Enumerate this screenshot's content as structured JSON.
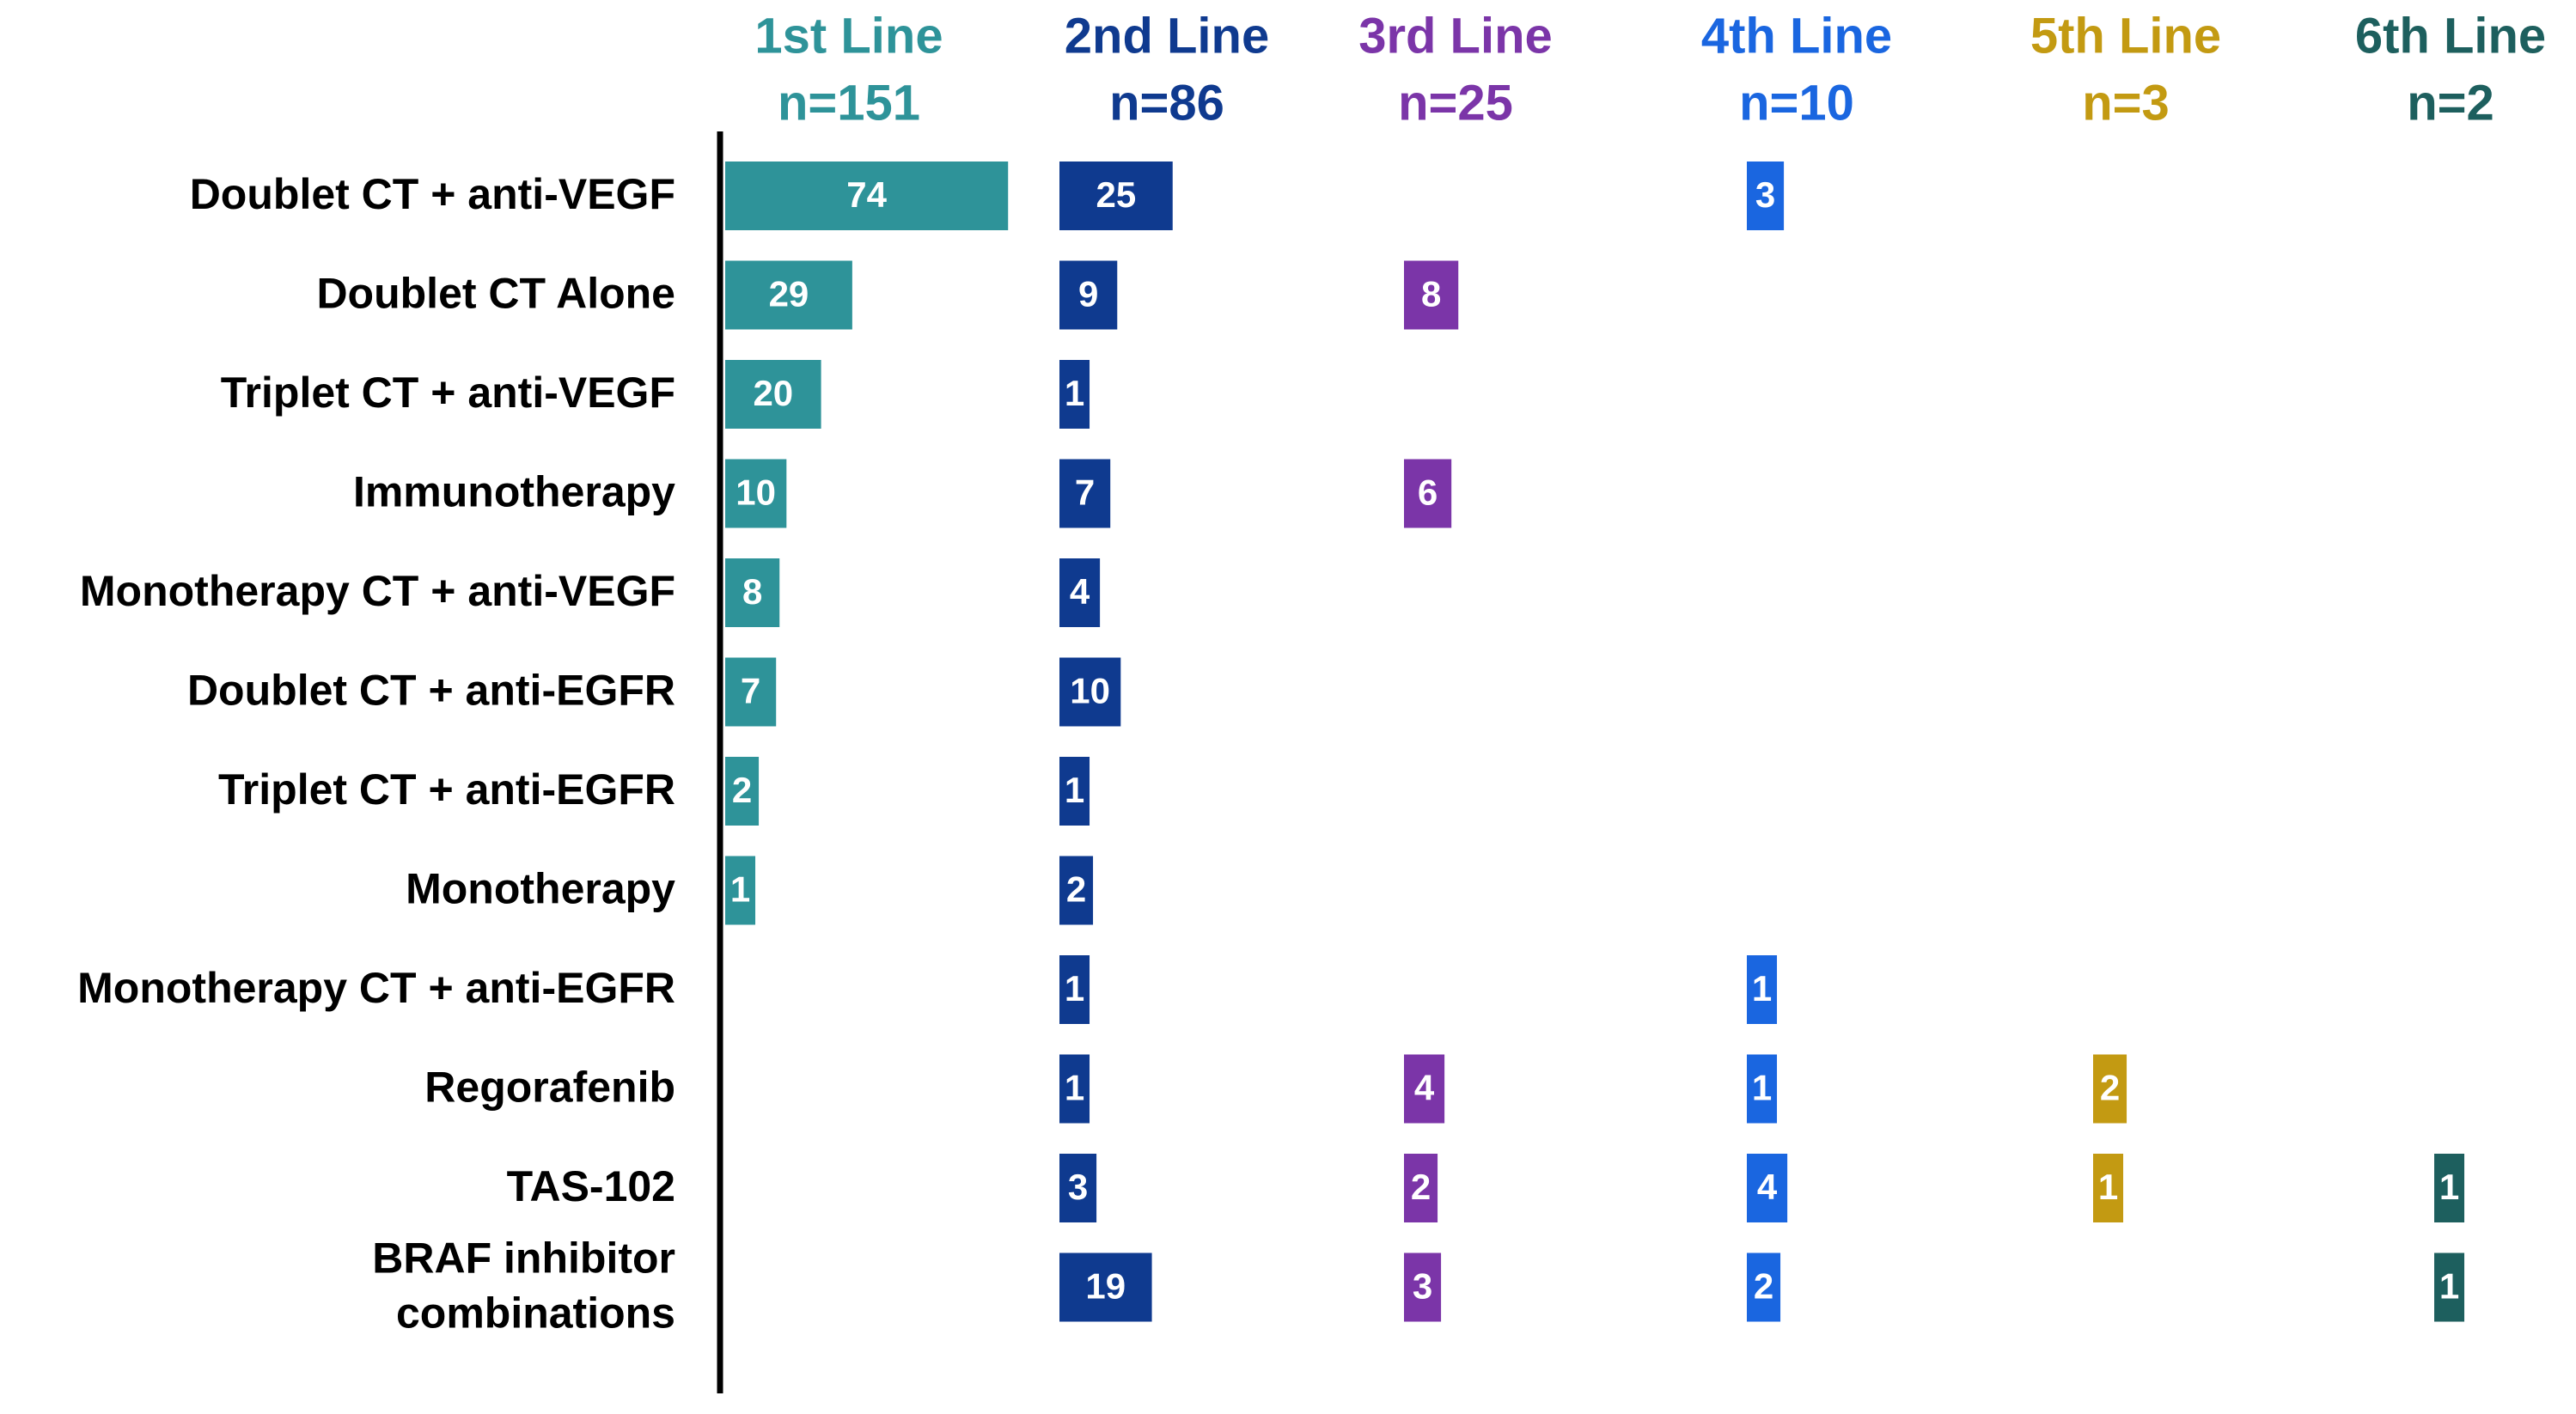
{
  "chart_data": {
    "type": "bar",
    "orientation": "horizontal",
    "categories": [
      "Doublet CT + anti-VEGF",
      "Doublet CT Alone",
      "Triplet CT + anti-VEGF",
      "Immunotherapy",
      "Monotherapy CT + anti-VEGF",
      "Doublet CT + anti-EGFR",
      "Triplet CT + anti-EGFR",
      "Monotherapy",
      "Monotherapy CT + anti-EGFR",
      "Regorafenib",
      "TAS-102",
      "BRAF inhibitor\ncombinations"
    ],
    "series": [
      {
        "name": "1st Line",
        "subtitle": "n=151",
        "color": "#2e9399",
        "values": [
          74,
          29,
          20,
          10,
          8,
          7,
          2,
          1,
          null,
          null,
          null,
          null
        ]
      },
      {
        "name": "2nd Line",
        "subtitle": "n=86",
        "color": "#0f3a8f",
        "values": [
          25,
          9,
          1,
          7,
          4,
          10,
          1,
          2,
          1,
          1,
          3,
          19
        ]
      },
      {
        "name": "3rd Line",
        "subtitle": "n=25",
        "color": "#7b35a8",
        "values": [
          null,
          8,
          null,
          6,
          null,
          null,
          null,
          null,
          null,
          4,
          2,
          3
        ]
      },
      {
        "name": "4th Line",
        "subtitle": "n=10",
        "color": "#1a66e0",
        "values": [
          3,
          null,
          null,
          null,
          null,
          null,
          null,
          null,
          1,
          1,
          4,
          2
        ]
      },
      {
        "name": "5th Line",
        "subtitle": "n=3",
        "color": "#c39a12",
        "values": [
          null,
          null,
          null,
          null,
          null,
          null,
          null,
          null,
          null,
          2,
          1,
          null
        ]
      },
      {
        "name": "6th Line",
        "subtitle": "n=2",
        "color": "#1d5f5e",
        "values": [
          null,
          null,
          null,
          null,
          null,
          null,
          null,
          null,
          null,
          null,
          1,
          1
        ]
      }
    ]
  }
}
